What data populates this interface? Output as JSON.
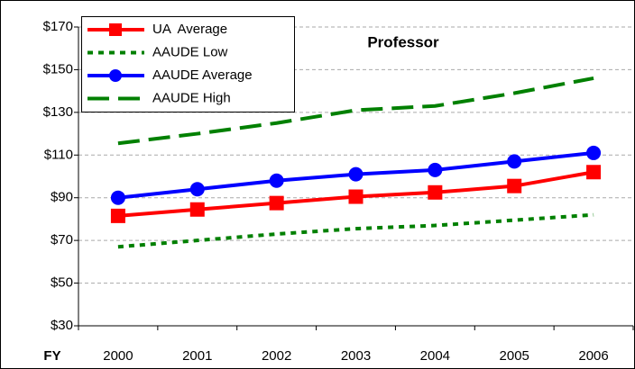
{
  "chart_data": {
    "type": "line",
    "title": "Professor",
    "x_label": "FY",
    "categories": [
      "2000",
      "2001",
      "2002",
      "2003",
      "2004",
      "2005",
      "2006"
    ],
    "series": [
      {
        "name": "UA  Average",
        "color": "#ff0000",
        "marker": "square",
        "dash": "solid",
        "values": [
          81.5,
          84.5,
          87.5,
          90.5,
          92.5,
          95.5,
          102
        ]
      },
      {
        "name": "AAUDE Low",
        "color": "#008000",
        "marker": "none",
        "dash": "dotted",
        "values": [
          67,
          70,
          73,
          75.5,
          77,
          79.5,
          82
        ]
      },
      {
        "name": "AAUDE Average",
        "color": "#0000ff",
        "marker": "circle",
        "dash": "solid",
        "values": [
          90,
          94,
          98,
          101,
          103,
          107,
          111
        ]
      },
      {
        "name": "AAUDE High",
        "color": "#008000",
        "marker": "none",
        "dash": "dashed",
        "values": [
          115.5,
          120,
          125,
          131,
          133,
          139,
          146
        ]
      }
    ],
    "ylim": [
      30,
      170
    ],
    "yticks": [
      {
        "value": 30,
        "label": "$30"
      },
      {
        "value": 50,
        "label": "$50"
      },
      {
        "value": 70,
        "label": "$70"
      },
      {
        "value": 90,
        "label": "$90"
      },
      {
        "value": 110,
        "label": "$110"
      },
      {
        "value": 130,
        "label": "$130"
      },
      {
        "value": 150,
        "label": "$150"
      },
      {
        "value": 170,
        "label": "$170"
      }
    ],
    "grid": true,
    "legend": "top-left"
  }
}
